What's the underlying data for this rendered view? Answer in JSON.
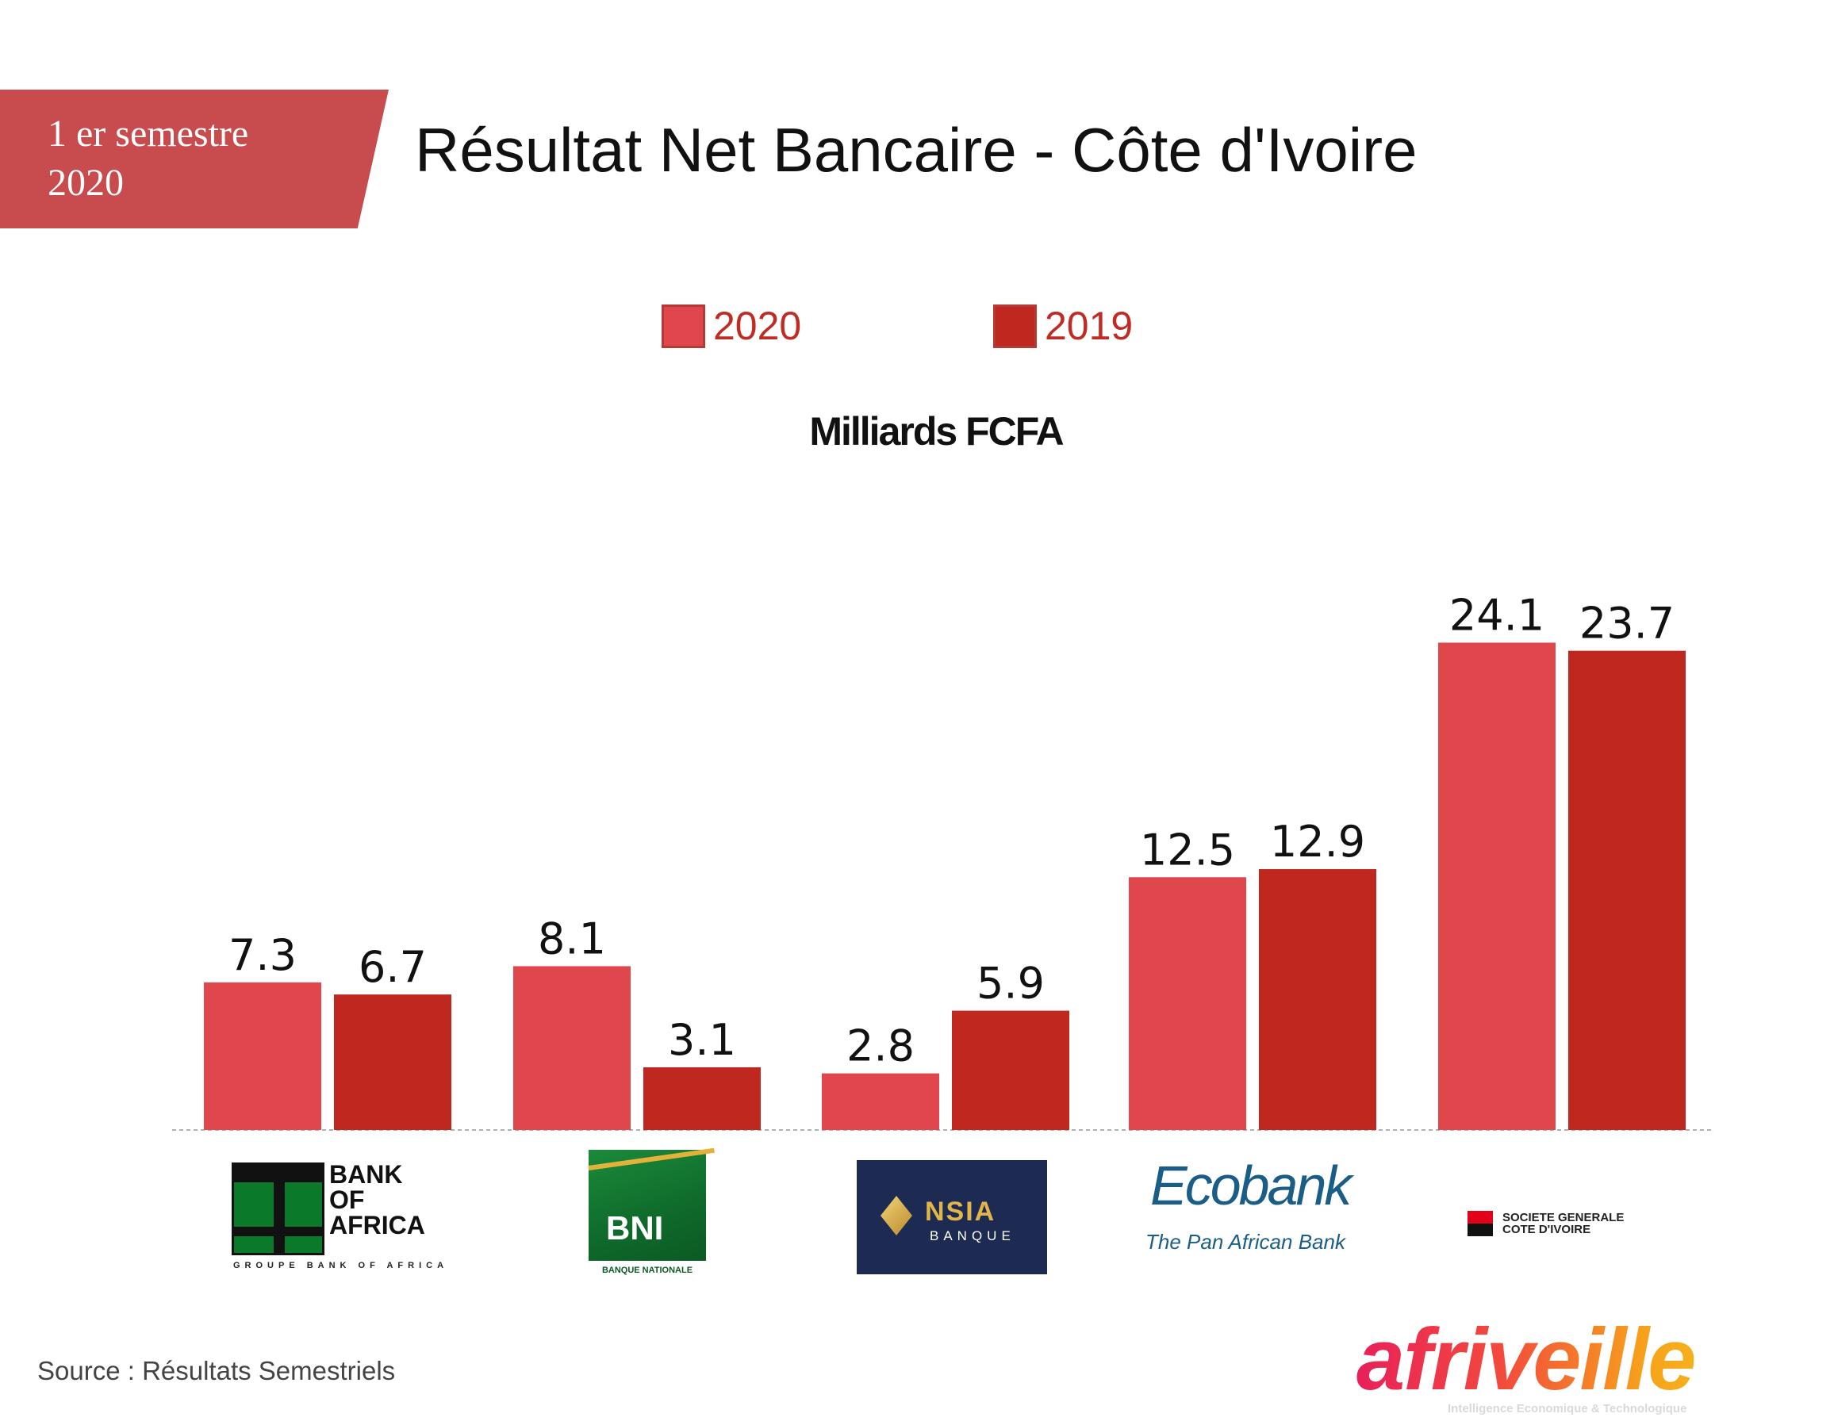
{
  "period": {
    "line1": "1 er semestre",
    "line2": "2020"
  },
  "title": "Résultat Net Bancaire - Côte d'Ivoire",
  "colors": {
    "banner": "#c84b4e",
    "series_2020": "#e0474c",
    "series_2019": "#be281f",
    "legend_text": "#c02b24"
  },
  "legend": [
    {
      "label": "2020"
    },
    {
      "label": "2019"
    }
  ],
  "unit_label": "Milliards FCFA",
  "chart_data": {
    "type": "bar",
    "categories": [
      "BANK OF AFRICA",
      "BNI",
      "NSIA BANQUE",
      "Ecobank",
      "SOCIETE GENERALE COTE D'IVOIRE"
    ],
    "series": [
      {
        "name": "2020",
        "values": [
          7.3,
          8.1,
          2.8,
          12.5,
          24.1
        ]
      },
      {
        "name": "2019",
        "values": [
          6.7,
          3.1,
          5.9,
          12.9,
          23.7
        ]
      }
    ],
    "ylabel": "Milliards FCFA",
    "grid": false,
    "legend_position": "top-center"
  },
  "logos": {
    "boa": {
      "line1": "BANK",
      "line2": "OF",
      "line3": "AFRICA",
      "sub": "GROUPE BANK OF AFRICA",
      "icon": "bank-of-africa-logo"
    },
    "bni": {
      "name": "BNI",
      "sub": "BANQUE NATIONALE",
      "icon": "bni-logo"
    },
    "nsia": {
      "name": "NSIA",
      "sub": "BANQUE",
      "icon": "nsia-logo"
    },
    "ecobank": {
      "name": "Ecobank",
      "sub": "The Pan African Bank",
      "icon": "ecobank-logo"
    },
    "sg": {
      "line1": "SOCIETE GENERALE",
      "line2": "COTE D'IVOIRE",
      "icon": "societe-generale-logo"
    }
  },
  "source": "Source : Résultats Semestriels",
  "brand": {
    "name": "afriveille",
    "tagline": "Intelligence Economique & Technologique"
  }
}
